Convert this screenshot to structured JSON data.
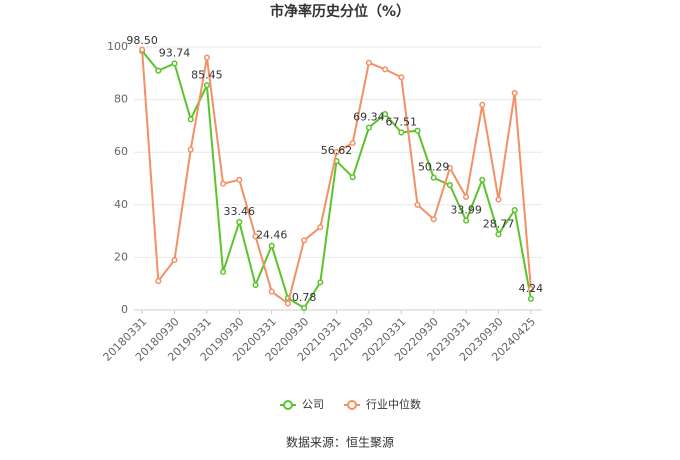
{
  "chart_data": {
    "type": "line",
    "title": "市净率历史分位（%）",
    "categories": [
      "20180331",
      null,
      "20180930",
      null,
      "20190331",
      null,
      "20190930",
      null,
      "20200331",
      null,
      "20200930",
      null,
      "20210331",
      null,
      "20210930",
      null,
      "20220331",
      null,
      "20220930",
      null,
      "20230331",
      null,
      "20230930",
      null,
      "20240425"
    ],
    "series": [
      {
        "name": "公司",
        "color": "#5cc32c",
        "values": [
          98.5,
          91,
          93.74,
          72.5,
          85.45,
          14.5,
          33.46,
          9.5,
          24.46,
          4.5,
          0.78,
          10.5,
          56.62,
          50.5,
          69.34,
          74.5,
          67.51,
          68.2,
          50.29,
          47.5,
          33.99,
          49.5,
          28.77,
          38,
          4.24
        ],
        "value_labels": [
          "98.50",
          null,
          "93.74",
          null,
          "85.45",
          null,
          "33.46",
          null,
          "24.46",
          null,
          "0.78",
          null,
          "56.62",
          null,
          "69.34",
          null,
          "67.51",
          null,
          "50.29",
          null,
          "33.99",
          null,
          "28.77",
          null,
          "4.24"
        ]
      },
      {
        "name": "行业中位数",
        "color": "#f39065",
        "values": [
          99,
          11,
          19,
          61,
          96,
          48,
          49.5,
          28,
          7,
          2.5,
          26.5,
          31.5,
          60,
          63.5,
          94,
          91.5,
          88.5,
          40,
          34.5,
          54,
          43,
          78,
          42,
          82.5,
          8
        ]
      }
    ],
    "ylim": [
      0,
      100
    ],
    "yticks": [
      0,
      20,
      40,
      60,
      80,
      100
    ],
    "grid": true,
    "legend": "bottom",
    "source": "数据来源：恒生聚源"
  }
}
